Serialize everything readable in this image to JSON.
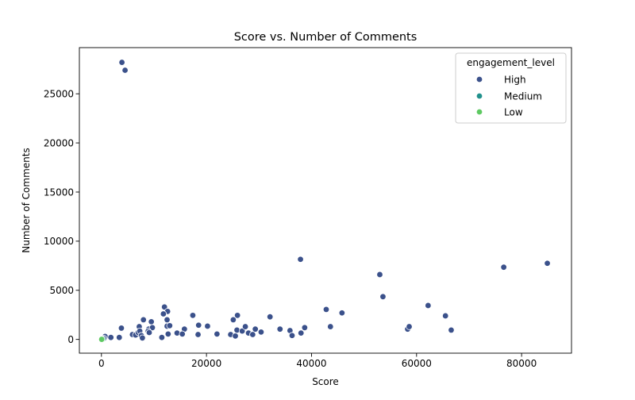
{
  "chart_data": {
    "type": "scatter",
    "title": "Score vs. Number of Comments",
    "xlabel": "Score",
    "ylabel": "Number of Comments",
    "xlim": [
      -4200,
      89500
    ],
    "ylim": [
      -1400,
      29700
    ],
    "xticks": [
      0,
      20000,
      40000,
      60000,
      80000
    ],
    "yticks": [
      0,
      5000,
      10000,
      15000,
      20000,
      25000
    ],
    "grid": false,
    "legend": {
      "title": "engagement_level",
      "placement": "top-right",
      "entries": [
        {
          "name": "High",
          "color": "#3b518b"
        },
        {
          "name": "Medium",
          "color": "#21918c"
        },
        {
          "name": "Low",
          "color": "#5ec962"
        }
      ]
    },
    "series": [
      {
        "name": "High",
        "color": "#3b518b",
        "points": [
          [
            3900,
            28200
          ],
          [
            4500,
            27400
          ],
          [
            37900,
            8150
          ],
          [
            76600,
            7350
          ],
          [
            84900,
            7750
          ],
          [
            53000,
            6600
          ],
          [
            53600,
            4350
          ],
          [
            62200,
            3450
          ],
          [
            65500,
            2400
          ],
          [
            66600,
            950
          ],
          [
            42800,
            3050
          ],
          [
            45800,
            2700
          ],
          [
            43600,
            1300
          ],
          [
            58300,
            1050
          ],
          [
            58600,
            1300
          ],
          [
            12000,
            3300
          ],
          [
            12600,
            2850
          ],
          [
            11800,
            2600
          ],
          [
            8000,
            2000
          ],
          [
            9500,
            1800
          ],
          [
            12500,
            2000
          ],
          [
            17400,
            2450
          ],
          [
            25900,
            2450
          ],
          [
            25100,
            2000
          ],
          [
            32100,
            2300
          ],
          [
            3800,
            1150
          ],
          [
            7200,
            1300
          ],
          [
            9000,
            1050
          ],
          [
            9700,
            1200
          ],
          [
            12500,
            1350
          ],
          [
            13000,
            1400
          ],
          [
            15800,
            1050
          ],
          [
            18500,
            1450
          ],
          [
            20200,
            1350
          ],
          [
            14400,
            650
          ],
          [
            15400,
            550
          ],
          [
            12700,
            550
          ],
          [
            18400,
            500
          ],
          [
            22000,
            550
          ],
          [
            24600,
            500
          ],
          [
            25500,
            350
          ],
          [
            25800,
            950
          ],
          [
            26800,
            850
          ],
          [
            27400,
            1300
          ],
          [
            28000,
            650
          ],
          [
            28800,
            500
          ],
          [
            29300,
            1050
          ],
          [
            30400,
            750
          ],
          [
            34000,
            1050
          ],
          [
            35900,
            900
          ],
          [
            36300,
            400
          ],
          [
            38000,
            650
          ],
          [
            38700,
            1200
          ],
          [
            700,
            300
          ],
          [
            1800,
            200
          ],
          [
            3400,
            200
          ],
          [
            5900,
            500
          ],
          [
            6500,
            450
          ],
          [
            7000,
            700
          ],
          [
            7300,
            850
          ],
          [
            7600,
            400
          ],
          [
            7800,
            150
          ],
          [
            8900,
            850
          ],
          [
            9100,
            700
          ],
          [
            11500,
            200
          ],
          [
            500,
            100
          ]
        ]
      },
      {
        "name": "Medium",
        "color": "#21918c",
        "points": [
          [
            150,
            60
          ],
          [
            250,
            40
          ]
        ]
      },
      {
        "name": "Low",
        "color": "#5ec962",
        "points": [
          [
            50,
            10
          ]
        ]
      }
    ]
  }
}
